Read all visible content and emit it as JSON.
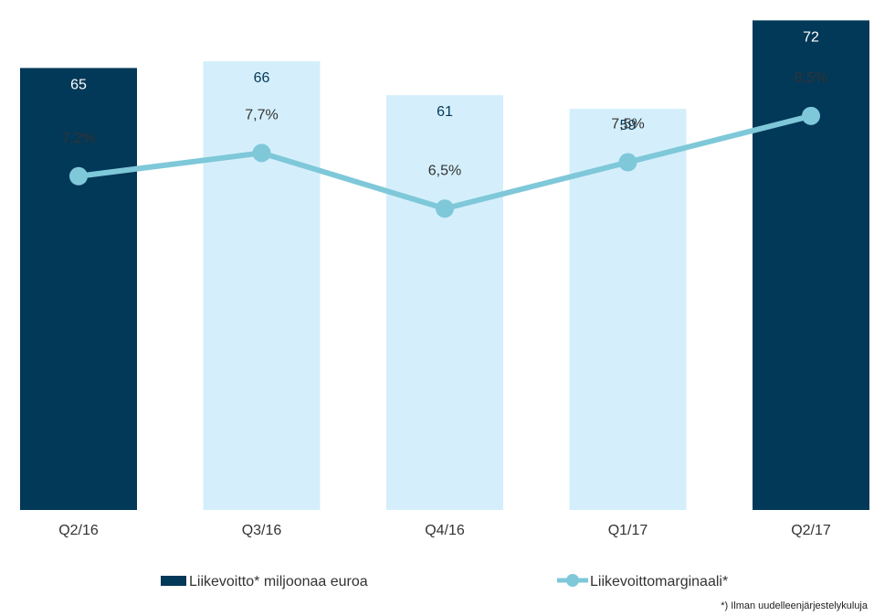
{
  "chart_data": {
    "type": "bar",
    "categories": [
      "Q2/16",
      "Q3/16",
      "Q4/16",
      "Q1/17",
      "Q2/17"
    ],
    "series": [
      {
        "name": "Liikevoitto* miljoonaa euroa",
        "type": "bar",
        "values": [
          65,
          66,
          61,
          59,
          72
        ],
        "value_labels": [
          "65",
          "66",
          "61",
          "59",
          "72"
        ],
        "bar_colors": [
          "#023858",
          "#d4effb",
          "#d4effb",
          "#d4effb",
          "#023858"
        ],
        "label_colors": [
          "#ffffff",
          "#023858",
          "#023858",
          "#023858",
          "#ffffff"
        ]
      },
      {
        "name": "Liikevoittomarginaali*",
        "type": "line",
        "values": [
          7.2,
          7.7,
          6.5,
          7.5,
          8.5
        ],
        "value_labels": [
          "7,2%",
          "7,7%",
          "6,5%",
          "7,5%",
          "8,5%"
        ],
        "color": "#7ec8d9"
      }
    ],
    "ylim_bars": [
      0,
      75
    ],
    "ylim_line": [
      0,
      11
    ],
    "legend_position": "bottom",
    "grid": false,
    "footnote": "*) Ilman uudelleenjärjestelykuluja"
  },
  "colors": {
    "dark_bar": "#023858",
    "light_bar": "#d4effb",
    "line": "#7ec8d9"
  }
}
